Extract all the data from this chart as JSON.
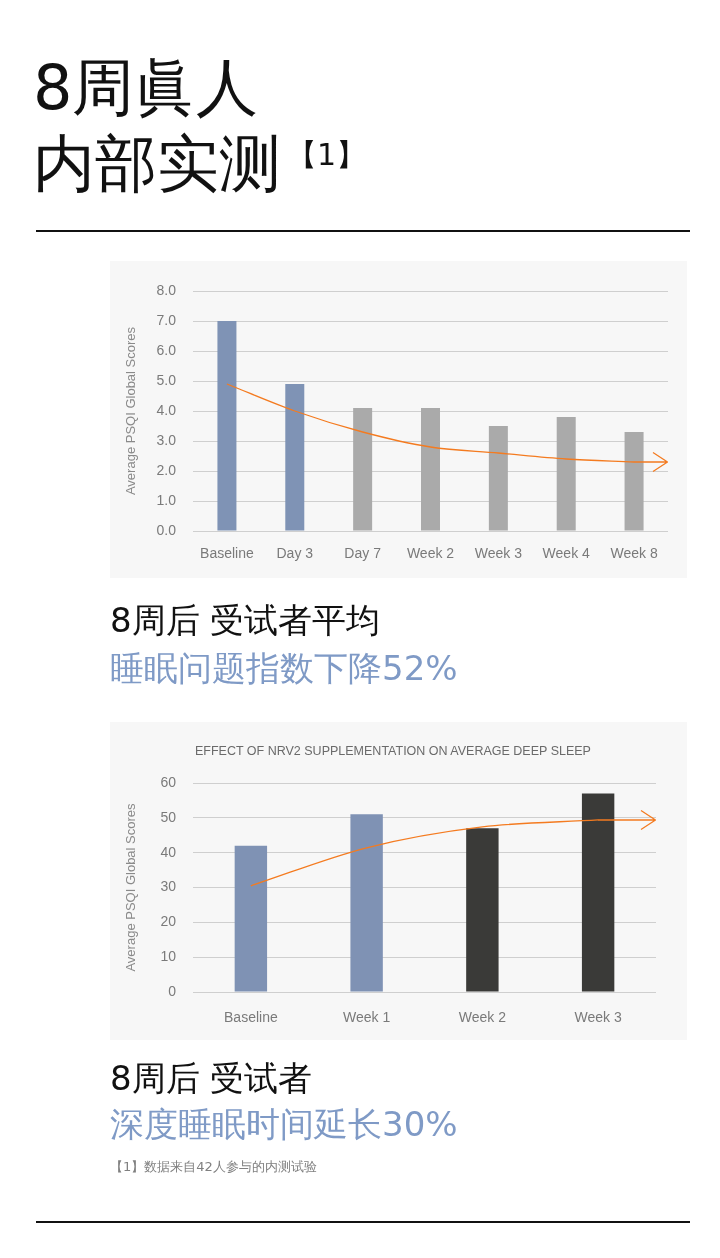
{
  "chart_data": [
    {
      "type": "bar",
      "title": "8周眞人内部实测$^{【1】}$",
      "ylabel": "Average PSQI Global Scores",
      "categories": [
        "Baseline",
        "Day 3",
        "Day 7",
        "Week 2",
        "Week 3",
        "Week 4",
        "Week 8"
      ],
      "series": [
        {
          "colors": [
            "#7f93b5",
            "#7f93b5",
            "#aaaaaa",
            "#aaaaaa",
            "#aaaaaa",
            "#aaaaaa",
            "#aaaaaa"
          ],
          "values": [
            7.0,
            4.9,
            4.1,
            4.1,
            3.5,
            3.8,
            3.3
          ]
        },
        {
          "type": "line",
          "color": "#f47b20",
          "values": [
            4.9,
            4.0,
            3.3,
            2.8,
            2.6,
            2.4,
            2.3
          ]
        }
      ],
      "ylim": [
        0,
        8
      ],
      "yticks": [
        {
          "value": 0,
          "label": "0.0"
        },
        {
          "value": 1,
          "label": "1.0"
        },
        {
          "value": 2,
          "label": "2.0"
        },
        {
          "value": 3,
          "label": "3.0"
        },
        {
          "value": 4,
          "label": "4.0"
        },
        {
          "value": 5,
          "label": "5.0"
        },
        {
          "value": 6,
          "label": "6.0"
        },
        {
          "value": 7,
          "label": "7.0"
        },
        {
          "value": 8,
          "label": "8.0"
        }
      ],
      "grid": "y",
      "annotations": [
        "8周后 受试者平均",
        "睡眠问题指数下降52%"
      ]
    },
    {
      "type": "bar",
      "title": "EFFECT OF NRV2 SUPPLEMENTATION ON AVERAGE DEEP SLEEP",
      "ylabel": "Average PSQI Global Scores",
      "categories": [
        "Baseline",
        "Week 1",
        "Week 2",
        "Week 3"
      ],
      "series": [
        {
          "colors": [
            "#7f92b4",
            "#7f92b4",
            "#3a3a38",
            "#3a3a38"
          ],
          "values": [
            42,
            51,
            47,
            57
          ]
        },
        {
          "type": "line",
          "color": "#f47b20",
          "values": [
            30.5,
            41.4,
            47.4,
            49.4
          ]
        }
      ],
      "ylim": [
        0,
        60
      ],
      "yticks": [
        0,
        10,
        20,
        30,
        40,
        50,
        60
      ],
      "grid": "y",
      "annotations": [
        "8周后 受试者",
        "深度睡眠时间延长30%",
        "【1】数据来自42人参与的内测试验"
      ]
    }
  ]
}
